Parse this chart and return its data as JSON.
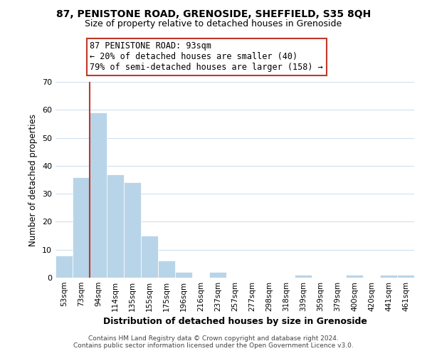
{
  "title1": "87, PENISTONE ROAD, GRENOSIDE, SHEFFIELD, S35 8QH",
  "title2": "Size of property relative to detached houses in Grenoside",
  "xlabel": "Distribution of detached houses by size in Grenoside",
  "ylabel": "Number of detached properties",
  "bin_labels": [
    "53sqm",
    "73sqm",
    "94sqm",
    "114sqm",
    "135sqm",
    "155sqm",
    "175sqm",
    "196sqm",
    "216sqm",
    "237sqm",
    "257sqm",
    "277sqm",
    "298sqm",
    "318sqm",
    "339sqm",
    "359sqm",
    "379sqm",
    "400sqm",
    "420sqm",
    "441sqm",
    "461sqm"
  ],
  "bar_heights": [
    8,
    36,
    59,
    37,
    34,
    15,
    6,
    2,
    0,
    2,
    0,
    0,
    0,
    0,
    1,
    0,
    0,
    1,
    0,
    1,
    1
  ],
  "bar_color": "#b8d4e8",
  "highlight_line_index": 2,
  "highlight_color": "#c0392b",
  "ylim": [
    0,
    70
  ],
  "yticks": [
    0,
    10,
    20,
    30,
    40,
    50,
    60,
    70
  ],
  "annotation_line0": "87 PENISTONE ROAD: 93sqm",
  "annotation_line1": "← 20% of detached houses are smaller (40)",
  "annotation_line2": "79% of semi-detached houses are larger (158) →",
  "annotation_box_color": "#ffffff",
  "annotation_box_edge": "#c0392b",
  "footer_line1": "Contains HM Land Registry data © Crown copyright and database right 2024.",
  "footer_line2": "Contains public sector information licensed under the Open Government Licence v3.0.",
  "bg_color": "#ffffff",
  "grid_color": "#cfe0ef"
}
